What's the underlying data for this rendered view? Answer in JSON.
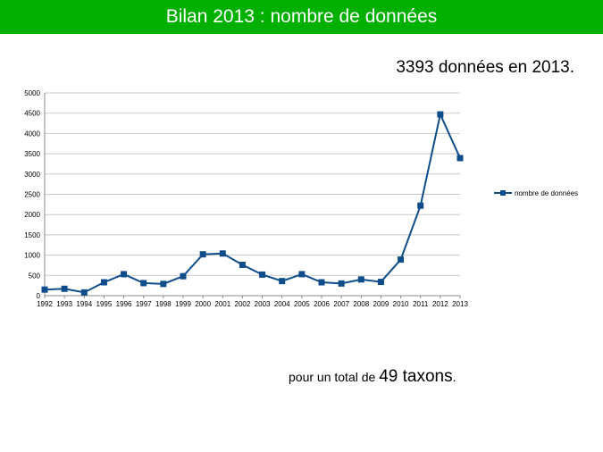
{
  "header": {
    "title": "Bilan 2013 : nombre de données"
  },
  "summary": {
    "text": "3393 données en 2013."
  },
  "total": {
    "prefix": "pour un total de ",
    "count": "49 taxons",
    "suffix": "."
  },
  "colors": {
    "title_bar": "#00b000",
    "series": "#0f4c8a",
    "grid": "#c8c8c8"
  },
  "chart_data": {
    "type": "line",
    "x": [
      "1992",
      "1993",
      "1994",
      "1995",
      "1996",
      "1997",
      "1998",
      "1999",
      "2000",
      "2001",
      "2002",
      "2003",
      "2004",
      "2005",
      "2006",
      "2007",
      "2008",
      "2009",
      "2010",
      "2011",
      "2012",
      "2013"
    ],
    "series": [
      {
        "name": "nombre de données",
        "values": [
          150,
          170,
          80,
          330,
          530,
          310,
          290,
          480,
          1020,
          1040,
          760,
          520,
          360,
          530,
          330,
          300,
          400,
          340,
          890,
          2220,
          4470,
          3393
        ]
      }
    ],
    "ylim": [
      0,
      5000
    ],
    "yticks": [
      0,
      500,
      1000,
      1500,
      2000,
      2500,
      3000,
      3500,
      4000,
      4500,
      5000
    ],
    "grid": true,
    "legend_position": "right",
    "marker": "square"
  }
}
